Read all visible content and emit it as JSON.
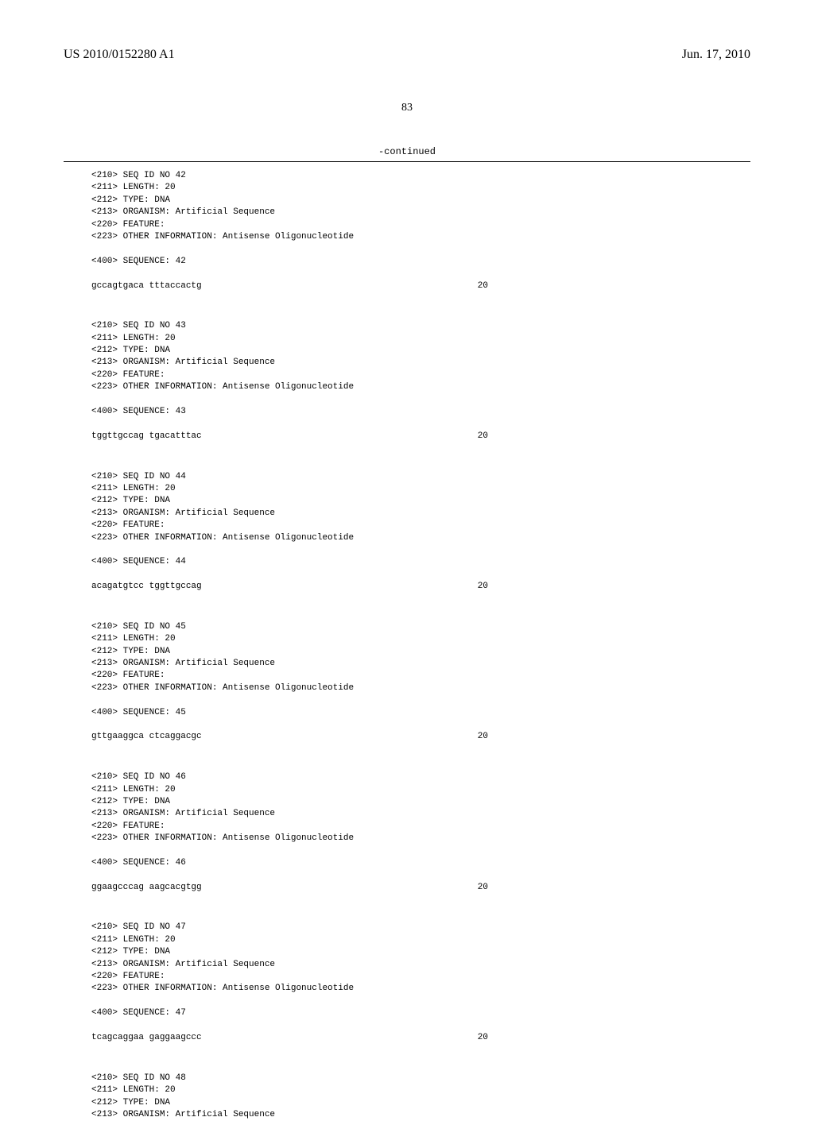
{
  "header": {
    "publicationNumber": "US 2010/0152280 A1",
    "publicationDate": "Jun. 17, 2010"
  },
  "pageNumber": "83",
  "continuedLabel": "-continued",
  "sequences": [
    {
      "id": "42",
      "headers": [
        "<210> SEQ ID NO 42",
        "<211> LENGTH: 20",
        "<212> TYPE: DNA",
        "<213> ORGANISM: Artificial Sequence",
        "<220> FEATURE:",
        "<223> OTHER INFORMATION: Antisense Oligonucleotide"
      ],
      "sequenceLabel": "<400> SEQUENCE: 42",
      "sequenceData": "gccagtgaca tttaccactg",
      "length": "20"
    },
    {
      "id": "43",
      "headers": [
        "<210> SEQ ID NO 43",
        "<211> LENGTH: 20",
        "<212> TYPE: DNA",
        "<213> ORGANISM: Artificial Sequence",
        "<220> FEATURE:",
        "<223> OTHER INFORMATION: Antisense Oligonucleotide"
      ],
      "sequenceLabel": "<400> SEQUENCE: 43",
      "sequenceData": "tggttgccag tgacatttac",
      "length": "20"
    },
    {
      "id": "44",
      "headers": [
        "<210> SEQ ID NO 44",
        "<211> LENGTH: 20",
        "<212> TYPE: DNA",
        "<213> ORGANISM: Artificial Sequence",
        "<220> FEATURE:",
        "<223> OTHER INFORMATION: Antisense Oligonucleotide"
      ],
      "sequenceLabel": "<400> SEQUENCE: 44",
      "sequenceData": "acagatgtcc tggttgccag",
      "length": "20"
    },
    {
      "id": "45",
      "headers": [
        "<210> SEQ ID NO 45",
        "<211> LENGTH: 20",
        "<212> TYPE: DNA",
        "<213> ORGANISM: Artificial Sequence",
        "<220> FEATURE:",
        "<223> OTHER INFORMATION: Antisense Oligonucleotide"
      ],
      "sequenceLabel": "<400> SEQUENCE: 45",
      "sequenceData": "gttgaaggca ctcaggacgc",
      "length": "20"
    },
    {
      "id": "46",
      "headers": [
        "<210> SEQ ID NO 46",
        "<211> LENGTH: 20",
        "<212> TYPE: DNA",
        "<213> ORGANISM: Artificial Sequence",
        "<220> FEATURE:",
        "<223> OTHER INFORMATION: Antisense Oligonucleotide"
      ],
      "sequenceLabel": "<400> SEQUENCE: 46",
      "sequenceData": "ggaagcccag aagcacgtgg",
      "length": "20"
    },
    {
      "id": "47",
      "headers": [
        "<210> SEQ ID NO 47",
        "<211> LENGTH: 20",
        "<212> TYPE: DNA",
        "<213> ORGANISM: Artificial Sequence",
        "<220> FEATURE:",
        "<223> OTHER INFORMATION: Antisense Oligonucleotide"
      ],
      "sequenceLabel": "<400> SEQUENCE: 47",
      "sequenceData": "tcagcaggaa gaggaagccc",
      "length": "20"
    },
    {
      "id": "48",
      "headers": [
        "<210> SEQ ID NO 48",
        "<211> LENGTH: 20",
        "<212> TYPE: DNA",
        "<213> ORGANISM: Artificial Sequence"
      ],
      "sequenceLabel": "",
      "sequenceData": "",
      "length": ""
    }
  ]
}
